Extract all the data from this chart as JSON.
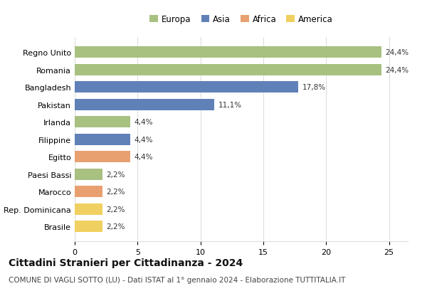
{
  "categories": [
    "Brasile",
    "Rep. Dominicana",
    "Marocco",
    "Paesi Bassi",
    "Egitto",
    "Filippine",
    "Irlanda",
    "Pakistan",
    "Bangladesh",
    "Romania",
    "Regno Unito"
  ],
  "values": [
    2.2,
    2.2,
    2.2,
    2.2,
    4.4,
    4.4,
    4.4,
    11.1,
    17.8,
    24.4,
    24.4
  ],
  "colors": [
    "#f0d060",
    "#f0d060",
    "#e8a070",
    "#a8c080",
    "#e8a070",
    "#6080b8",
    "#a8c080",
    "#6080b8",
    "#6080b8",
    "#a8c080",
    "#a8c080"
  ],
  "labels": [
    "2,2%",
    "2,2%",
    "2,2%",
    "2,2%",
    "4,4%",
    "4,4%",
    "4,4%",
    "11,1%",
    "17,8%",
    "24,4%",
    "24,4%"
  ],
  "legend_items": [
    {
      "label": "Europa",
      "color": "#a8c080"
    },
    {
      "label": "Asia",
      "color": "#6080b8"
    },
    {
      "label": "Africa",
      "color": "#e8a070"
    },
    {
      "label": "America",
      "color": "#f0d060"
    }
  ],
  "xlim": [
    0,
    26.5
  ],
  "xticks": [
    0,
    5,
    10,
    15,
    20,
    25
  ],
  "title": "Cittadini Stranieri per Cittadinanza - 2024",
  "subtitle": "COMUNE DI VAGLI SOTTO (LU) - Dati ISTAT al 1° gennaio 2024 - Elaborazione TUTTITALIA.IT",
  "title_fontsize": 10,
  "subtitle_fontsize": 7.5,
  "bar_height": 0.65,
  "label_fontsize": 7.5,
  "tick_fontsize": 8,
  "background_color": "#ffffff",
  "grid_color": "#dddddd"
}
